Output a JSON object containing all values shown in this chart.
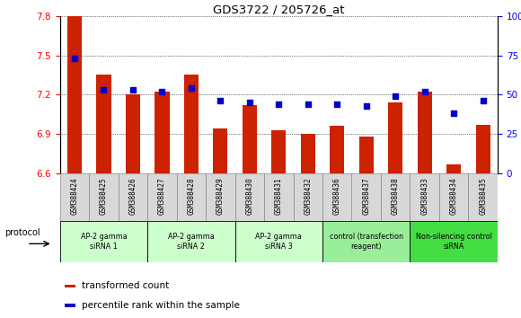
{
  "title": "GDS3722 / 205726_at",
  "samples": [
    "GSM388424",
    "GSM388425",
    "GSM388426",
    "GSM388427",
    "GSM388428",
    "GSM388429",
    "GSM388430",
    "GSM388431",
    "GSM388432",
    "GSM388436",
    "GSM388437",
    "GSM388438",
    "GSM388433",
    "GSM388434",
    "GSM388435"
  ],
  "bar_values": [
    7.8,
    7.35,
    7.2,
    7.22,
    7.35,
    6.94,
    7.12,
    6.93,
    6.9,
    6.96,
    6.88,
    7.14,
    7.22,
    6.67,
    6.97
  ],
  "dot_values": [
    73,
    53,
    53,
    52,
    54,
    46,
    45,
    44,
    44,
    44,
    43,
    49,
    52,
    38,
    46
  ],
  "bar_color": "#cc2200",
  "dot_color": "#0000cc",
  "ymin": 6.6,
  "ymax": 7.8,
  "y2min": 0,
  "y2max": 100,
  "yticks": [
    6.6,
    6.9,
    7.2,
    7.5,
    7.8
  ],
  "y2ticks": [
    0,
    25,
    50,
    75,
    100
  ],
  "y2ticklabels": [
    "0",
    "25",
    "50",
    "75",
    "100%"
  ],
  "groups": [
    {
      "label": "AP-2 gamma\nsiRNA 1",
      "start": 0,
      "end": 3,
      "color": "#ccffcc"
    },
    {
      "label": "AP-2 gamma\nsiRNA 2",
      "start": 3,
      "end": 6,
      "color": "#ccffcc"
    },
    {
      "label": "AP-2 gamma\nsiRNA 3",
      "start": 6,
      "end": 9,
      "color": "#ccffcc"
    },
    {
      "label": "control (transfection\nreagent)",
      "start": 9,
      "end": 12,
      "color": "#99ee99"
    },
    {
      "label": "Non-silencing control\nsiRNA",
      "start": 12,
      "end": 15,
      "color": "#44dd44"
    }
  ],
  "protocol_label": "protocol",
  "legend_bar": "transformed count",
  "legend_dot": "percentile rank within the sample",
  "bar_width": 0.5,
  "sample_box_color": "#d8d8d8",
  "sample_box_edge": "#888888"
}
